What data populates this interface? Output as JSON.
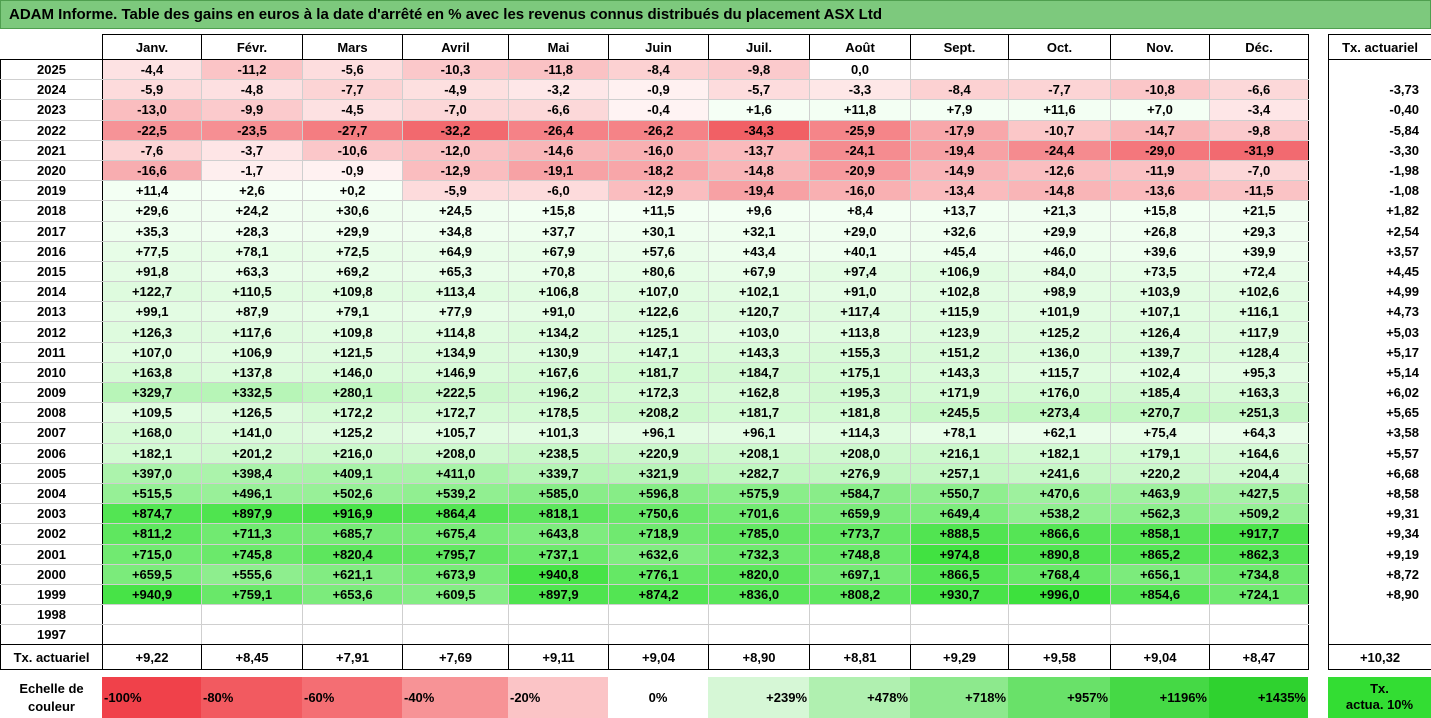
{
  "title": "ADAM Informe. Table des gains en euros à la date d'arrêté en % avec les revenus connus distribués du placement ASX Ltd",
  "months": [
    "Janv.",
    "Févr.",
    "Mars",
    "Avril",
    "Mai",
    "Juin",
    "Juil.",
    "Août",
    "Sept.",
    "Oct.",
    "Nov.",
    "Déc."
  ],
  "side_header": "Tx. actuariel",
  "rows": [
    {
      "year": "2025",
      "values": [
        "-4,4",
        "-11,2",
        "-5,6",
        "-10,3",
        "-11,8",
        "-8,4",
        "-9,8",
        "0,0",
        "",
        "",
        "",
        ""
      ],
      "rate": ""
    },
    {
      "year": "2024",
      "values": [
        "-5,9",
        "-4,8",
        "-7,7",
        "-4,9",
        "-3,2",
        "-0,9",
        "-5,7",
        "-3,3",
        "-8,4",
        "-7,7",
        "-10,8",
        "-6,6"
      ],
      "rate": "-3,73"
    },
    {
      "year": "2023",
      "values": [
        "-13,0",
        "-9,9",
        "-4,5",
        "-7,0",
        "-6,6",
        "-0,4",
        "+1,6",
        "+11,8",
        "+7,9",
        "+11,6",
        "+7,0",
        "-3,4"
      ],
      "rate": "-0,40"
    },
    {
      "year": "2022",
      "values": [
        "-22,5",
        "-23,5",
        "-27,7",
        "-32,2",
        "-26,4",
        "-26,2",
        "-34,3",
        "-25,9",
        "-17,9",
        "-10,7",
        "-14,7",
        "-9,8"
      ],
      "rate": "-5,84"
    },
    {
      "year": "2021",
      "values": [
        "-7,6",
        "-3,7",
        "-10,6",
        "-12,0",
        "-14,6",
        "-16,0",
        "-13,7",
        "-24,1",
        "-19,4",
        "-24,4",
        "-29,0",
        "-31,9"
      ],
      "rate": "-3,30"
    },
    {
      "year": "2020",
      "values": [
        "-16,6",
        "-1,7",
        "-0,9",
        "-12,9",
        "-19,1",
        "-18,2",
        "-14,8",
        "-20,9",
        "-14,9",
        "-12,6",
        "-11,9",
        "-7,0"
      ],
      "rate": "-1,98"
    },
    {
      "year": "2019",
      "values": [
        "+11,4",
        "+2,6",
        "+0,2",
        "-5,9",
        "-6,0",
        "-12,9",
        "-19,4",
        "-16,0",
        "-13,4",
        "-14,8",
        "-13,6",
        "-11,5"
      ],
      "rate": "-1,08"
    },
    {
      "year": "2018",
      "values": [
        "+29,6",
        "+24,2",
        "+30,6",
        "+24,5",
        "+15,8",
        "+11,5",
        "+9,6",
        "+8,4",
        "+13,7",
        "+21,3",
        "+15,8",
        "+21,5"
      ],
      "rate": "+1,82"
    },
    {
      "year": "2017",
      "values": [
        "+35,3",
        "+28,3",
        "+29,9",
        "+34,8",
        "+37,7",
        "+30,1",
        "+32,1",
        "+29,0",
        "+32,6",
        "+29,9",
        "+26,8",
        "+29,3"
      ],
      "rate": "+2,54"
    },
    {
      "year": "2016",
      "values": [
        "+77,5",
        "+78,1",
        "+72,5",
        "+64,9",
        "+67,9",
        "+57,6",
        "+43,4",
        "+40,1",
        "+45,4",
        "+46,0",
        "+39,6",
        "+39,9"
      ],
      "rate": "+3,57"
    },
    {
      "year": "2015",
      "values": [
        "+91,8",
        "+63,3",
        "+69,2",
        "+65,3",
        "+70,8",
        "+80,6",
        "+67,9",
        "+97,4",
        "+106,9",
        "+84,0",
        "+73,5",
        "+72,4"
      ],
      "rate": "+4,45"
    },
    {
      "year": "2014",
      "values": [
        "+122,7",
        "+110,5",
        "+109,8",
        "+113,4",
        "+106,8",
        "+107,0",
        "+102,1",
        "+91,0",
        "+102,8",
        "+98,9",
        "+103,9",
        "+102,6"
      ],
      "rate": "+4,99"
    },
    {
      "year": "2013",
      "values": [
        "+99,1",
        "+87,9",
        "+79,1",
        "+77,9",
        "+91,0",
        "+122,6",
        "+120,7",
        "+117,4",
        "+115,9",
        "+101,9",
        "+107,1",
        "+116,1"
      ],
      "rate": "+4,73"
    },
    {
      "year": "2012",
      "values": [
        "+126,3",
        "+117,6",
        "+109,8",
        "+114,8",
        "+134,2",
        "+125,1",
        "+103,0",
        "+113,8",
        "+123,9",
        "+125,2",
        "+126,4",
        "+117,9"
      ],
      "rate": "+5,03"
    },
    {
      "year": "2011",
      "values": [
        "+107,0",
        "+106,9",
        "+121,5",
        "+134,9",
        "+130,9",
        "+147,1",
        "+143,3",
        "+155,3",
        "+151,2",
        "+136,0",
        "+139,7",
        "+128,4"
      ],
      "rate": "+5,17"
    },
    {
      "year": "2010",
      "values": [
        "+163,8",
        "+137,8",
        "+146,0",
        "+146,9",
        "+167,6",
        "+181,7",
        "+184,7",
        "+175,1",
        "+143,3",
        "+115,7",
        "+102,4",
        "+95,3"
      ],
      "rate": "+5,14"
    },
    {
      "year": "2009",
      "values": [
        "+329,7",
        "+332,5",
        "+280,1",
        "+222,5",
        "+196,2",
        "+172,3",
        "+162,8",
        "+195,3",
        "+171,9",
        "+176,0",
        "+185,4",
        "+163,3"
      ],
      "rate": "+6,02"
    },
    {
      "year": "2008",
      "values": [
        "+109,5",
        "+126,5",
        "+172,2",
        "+172,7",
        "+178,5",
        "+208,2",
        "+181,7",
        "+181,8",
        "+245,5",
        "+273,4",
        "+270,7",
        "+251,3"
      ],
      "rate": "+5,65"
    },
    {
      "year": "2007",
      "values": [
        "+168,0",
        "+141,0",
        "+125,2",
        "+105,7",
        "+101,3",
        "+96,1",
        "+96,1",
        "+114,3",
        "+78,1",
        "+62,1",
        "+75,4",
        "+64,3"
      ],
      "rate": "+3,58"
    },
    {
      "year": "2006",
      "values": [
        "+182,1",
        "+201,2",
        "+216,0",
        "+208,0",
        "+238,5",
        "+220,9",
        "+208,1",
        "+208,0",
        "+216,1",
        "+182,1",
        "+179,1",
        "+164,6"
      ],
      "rate": "+5,57"
    },
    {
      "year": "2005",
      "values": [
        "+397,0",
        "+398,4",
        "+409,1",
        "+411,0",
        "+339,7",
        "+321,9",
        "+282,7",
        "+276,9",
        "+257,1",
        "+241,6",
        "+220,2",
        "+204,4"
      ],
      "rate": "+6,68"
    },
    {
      "year": "2004",
      "values": [
        "+515,5",
        "+496,1",
        "+502,6",
        "+539,2",
        "+585,0",
        "+596,8",
        "+575,9",
        "+584,7",
        "+550,7",
        "+470,6",
        "+463,9",
        "+427,5"
      ],
      "rate": "+8,58"
    },
    {
      "year": "2003",
      "values": [
        "+874,7",
        "+897,9",
        "+916,9",
        "+864,4",
        "+818,1",
        "+750,6",
        "+701,6",
        "+659,9",
        "+649,4",
        "+538,2",
        "+562,3",
        "+509,2"
      ],
      "rate": "+9,31"
    },
    {
      "year": "2002",
      "values": [
        "+811,2",
        "+711,3",
        "+685,7",
        "+675,4",
        "+643,8",
        "+718,9",
        "+785,0",
        "+773,7",
        "+888,5",
        "+866,6",
        "+858,1",
        "+917,7"
      ],
      "rate": "+9,34"
    },
    {
      "year": "2001",
      "values": [
        "+715,0",
        "+745,8",
        "+820,4",
        "+795,7",
        "+737,1",
        "+632,6",
        "+732,3",
        "+748,8",
        "+974,8",
        "+890,8",
        "+865,2",
        "+862,3"
      ],
      "rate": "+9,19"
    },
    {
      "year": "2000",
      "values": [
        "+659,5",
        "+555,6",
        "+621,1",
        "+673,9",
        "+940,8",
        "+776,1",
        "+820,0",
        "+697,1",
        "+866,5",
        "+768,4",
        "+656,1",
        "+734,8"
      ],
      "rate": "+8,72"
    },
    {
      "year": "1999",
      "values": [
        "+940,9",
        "+759,1",
        "+653,6",
        "+609,5",
        "+897,9",
        "+874,2",
        "+836,0",
        "+808,2",
        "+930,7",
        "+996,0",
        "+854,6",
        "+724,1"
      ],
      "rate": "+8,90"
    },
    {
      "year": "1998",
      "values": [
        "",
        "",
        "",
        "",
        "",
        "",
        "",
        "",
        "",
        "",
        "",
        ""
      ],
      "rate": ""
    },
    {
      "year": "1997",
      "values": [
        "",
        "",
        "",
        "",
        "",
        "",
        "",
        "",
        "",
        "",
        "",
        ""
      ],
      "rate": ""
    }
  ],
  "totals": {
    "label": "Tx. actuariel",
    "values": [
      "+9,22",
      "+8,45",
      "+7,91",
      "+7,69",
      "+9,11",
      "+9,04",
      "+8,90",
      "+8,81",
      "+9,29",
      "+9,58",
      "+9,04",
      "+8,47"
    ],
    "rate": "+10,32"
  },
  "scale": {
    "label_line1": "Echelle de",
    "label_line2": "couleur",
    "steps": [
      {
        "label": "-100%",
        "color": "#f0414a",
        "kind": "neg"
      },
      {
        "label": "-80%",
        "color": "#f25a60",
        "kind": "neg"
      },
      {
        "label": "-60%",
        "color": "#f46e73",
        "kind": "neg"
      },
      {
        "label": "-40%",
        "color": "#f79396",
        "kind": "neg"
      },
      {
        "label": "-20%",
        "color": "#fbc4c6",
        "kind": "neg"
      },
      {
        "label": "0%",
        "color": "#ffffff",
        "kind": "mid"
      },
      {
        "label": "+239%",
        "color": "#d6f7d6",
        "kind": "pos"
      },
      {
        "label": "+478%",
        "color": "#b0f0b0",
        "kind": "pos"
      },
      {
        "label": "+718%",
        "color": "#8de98d",
        "kind": "pos"
      },
      {
        "label": "+957%",
        "color": "#69e169",
        "kind": "pos"
      },
      {
        "label": "+1196%",
        "color": "#45d945",
        "kind": "pos"
      },
      {
        "label": "+1435%",
        "color": "#2fd22f",
        "kind": "pos"
      }
    ],
    "side_line1": "Tx.",
    "side_line2": "actua. 10%"
  },
  "colors": {
    "title_bg": "#7dc97d",
    "negative_max": "#f0414a",
    "positive_max": "#2fd22f"
  }
}
